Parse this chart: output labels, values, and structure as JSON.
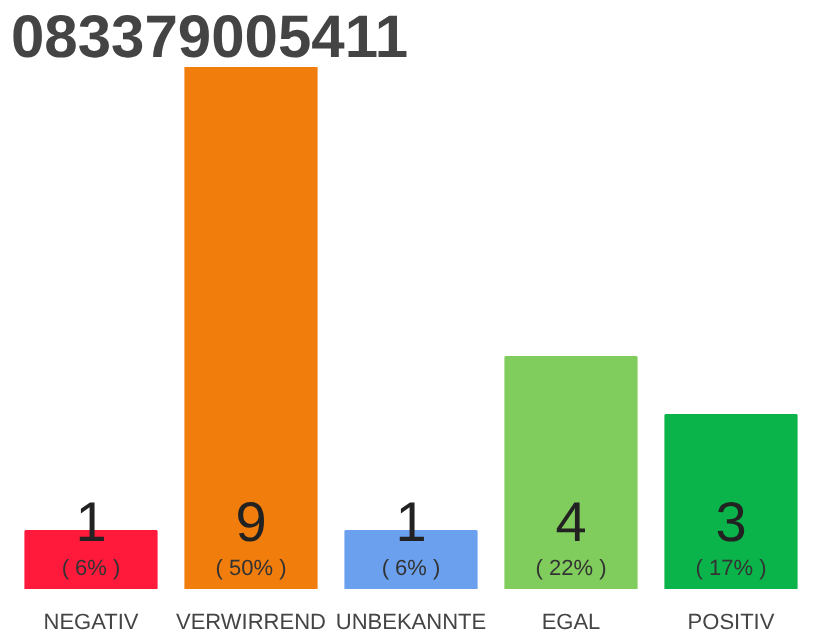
{
  "chart_data": {
    "type": "bar",
    "title": "083379005411",
    "categories": [
      "NEGATIV",
      "VERWIRREND",
      "UNBEKANNTE",
      "EGAL",
      "POSITIV"
    ],
    "values": [
      1,
      9,
      1,
      4,
      3
    ],
    "colors": [
      "#ff1a3c",
      "#f07d0c",
      "#6aa0ee",
      "#80cc5c",
      "#0ab44a"
    ],
    "ylim": [
      0,
      9
    ],
    "data_labels": true,
    "grid": false,
    "tick_labels": "x",
    "annotations": [
      "( 6% )",
      "( 50% )",
      "( 6% )",
      "( 22% )",
      "( 17% )"
    ]
  }
}
